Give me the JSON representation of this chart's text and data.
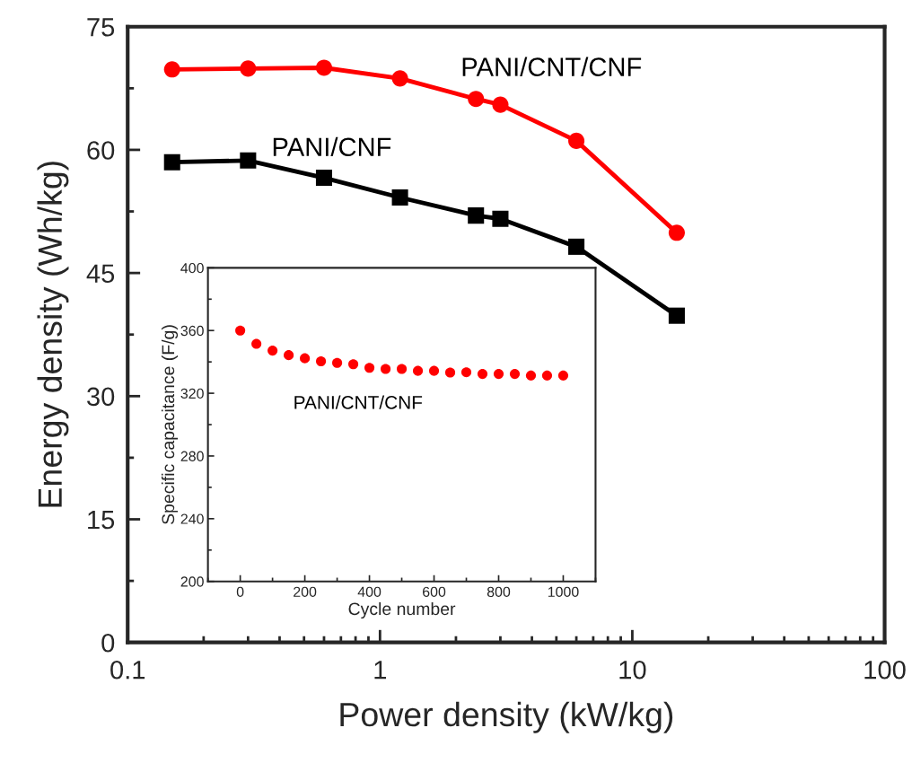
{
  "chart_data": [
    {
      "type": "line",
      "xlabel": "Power density (kW/kg)",
      "ylabel": "Energy density (Wh/kg)",
      "log": "x",
      "x": [
        0.15,
        0.3,
        0.6,
        1.2,
        2.4,
        3,
        6,
        15
      ],
      "xlim": [
        0.1,
        100
      ],
      "xticks": [
        0.1,
        1,
        10,
        100
      ],
      "ylim": [
        0,
        75
      ],
      "yticks": [
        0,
        15,
        30,
        45,
        60,
        75
      ],
      "grid": false,
      "legend": false,
      "series": [
        {
          "name": "PANI/CNT/CNF",
          "color": "#ff0000",
          "marker": "circle",
          "values": [
            69.8,
            69.9,
            70.0,
            68.7,
            66.2,
            65.5,
            61.1,
            49.9
          ]
        },
        {
          "name": "PANI/CNF",
          "color": "#000000",
          "marker": "square",
          "values": [
            58.5,
            58.7,
            56.6,
            54.2,
            52.0,
            51.6,
            48.2,
            39.8
          ]
        }
      ]
    },
    {
      "type": "scatter",
      "xlabel": "Cycle number",
      "ylabel": "Specific capacitance (F/g)",
      "x": [
        0,
        50,
        100,
        150,
        200,
        250,
        300,
        350,
        400,
        450,
        500,
        550,
        600,
        650,
        700,
        750,
        800,
        850,
        900,
        950,
        1000
      ],
      "xlim": [
        -100,
        1100
      ],
      "xticks": [
        0,
        200,
        400,
        600,
        800,
        1000
      ],
      "ylim": [
        200,
        400
      ],
      "yticks": [
        200,
        240,
        280,
        320,
        360,
        400
      ],
      "grid": false,
      "legend": false,
      "series": [
        {
          "name": "PANI/CNT/CNF",
          "color": "#ff0000",
          "marker": "circle",
          "values": [
            360,
            351.5,
            347.2,
            344.3,
            342.3,
            340.4,
            339.4,
            338.5,
            336.2,
            335.5,
            335.5,
            334.3,
            334.3,
            333.2,
            333.4,
            332.3,
            332.3,
            332.3,
            331.3,
            331.3,
            331.3
          ]
        }
      ]
    }
  ]
}
